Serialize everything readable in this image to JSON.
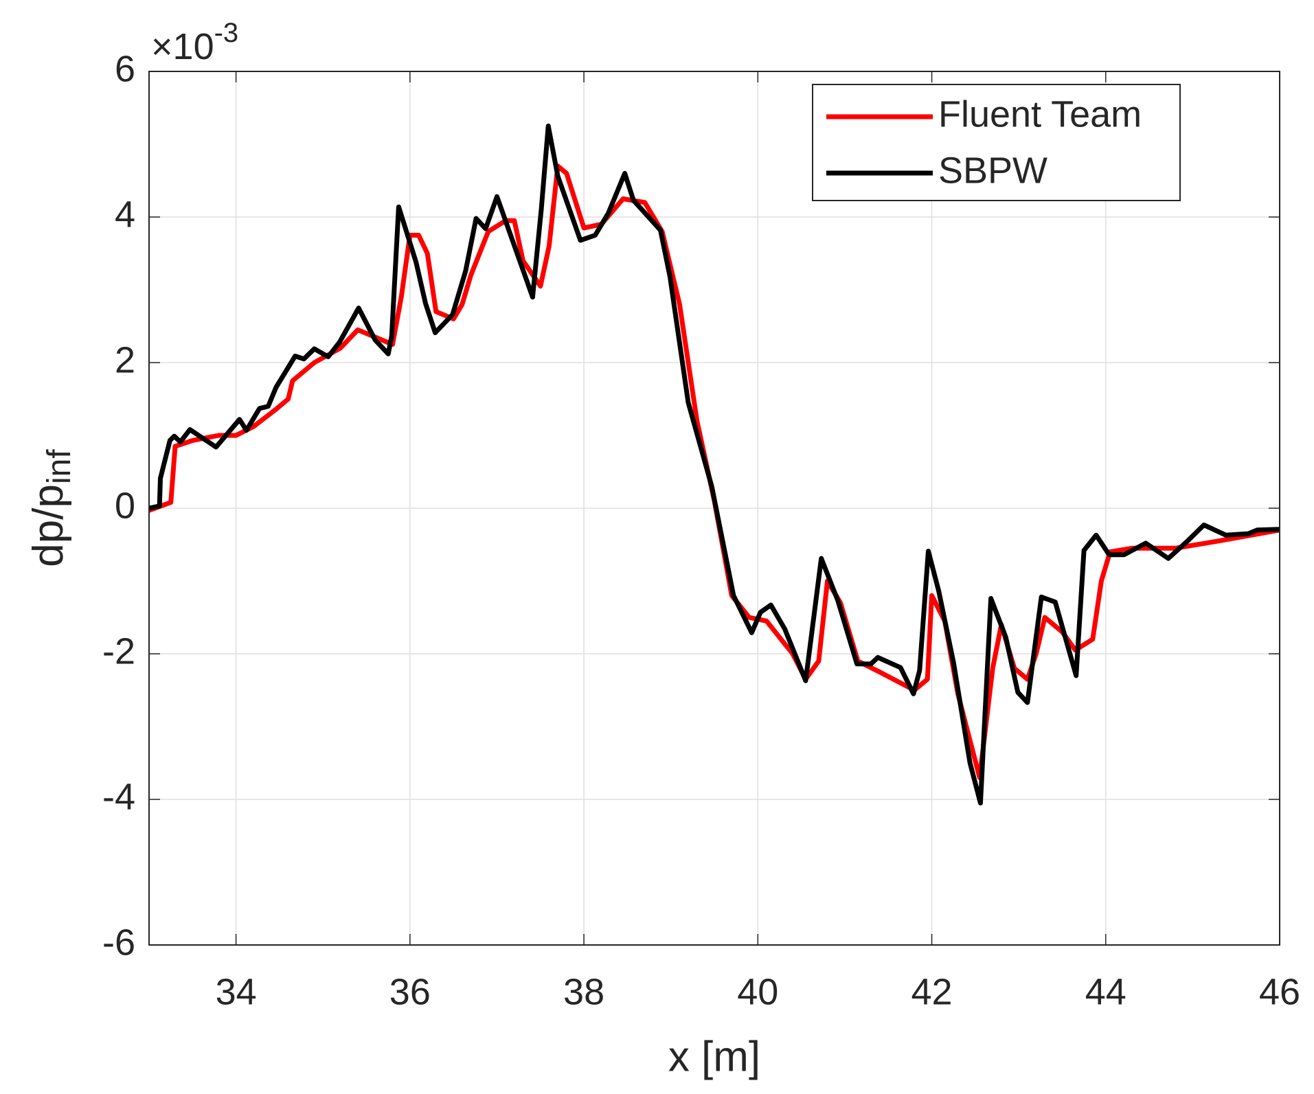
{
  "chart_data": {
    "type": "line",
    "xlabel": "x [m]",
    "ylabel": "dp/p",
    "ylabel_sub": "inf",
    "y_multiplier_base": "×10",
    "y_multiplier_exponent": "-3",
    "xlim": [
      33,
      46
    ],
    "xticks": [
      34,
      36,
      38,
      40,
      42,
      44,
      46
    ],
    "ylim": [
      -6,
      6
    ],
    "yticks": [
      -6,
      -4,
      -2,
      0,
      2,
      4,
      6
    ],
    "grid": true,
    "legend": "upper right",
    "series": [
      {
        "name": "Fluent Team",
        "color": "#ff0000",
        "x": [
          33,
          33.25,
          33.3,
          33.5,
          33.8,
          34.0,
          34.2,
          34.45,
          34.6,
          34.65,
          34.9,
          35.2,
          35.4,
          35.6,
          35.8,
          35.9,
          36.0,
          36.1,
          36.2,
          36.3,
          36.5,
          36.6,
          36.7,
          36.9,
          37.1,
          37.2,
          37.3,
          37.5,
          37.6,
          37.7,
          37.8,
          38.0,
          38.2,
          38.45,
          38.7,
          38.9,
          39.1,
          39.3,
          39.5,
          39.7,
          39.9,
          40.1,
          40.4,
          40.55,
          40.7,
          40.8,
          40.95,
          41.15,
          41.4,
          41.8,
          41.95,
          42.0,
          42.15,
          42.3,
          42.55,
          42.7,
          42.8,
          42.95,
          43.1,
          43.2,
          43.3,
          43.5,
          43.65,
          43.85,
          43.95,
          44.05,
          44.3,
          44.8,
          45.3,
          46
        ],
        "values": [
          -0.03,
          0.08,
          0.85,
          0.93,
          1.0,
          1.0,
          1.12,
          1.35,
          1.5,
          1.75,
          2.0,
          2.2,
          2.45,
          2.35,
          2.25,
          2.9,
          3.75,
          3.75,
          3.5,
          2.7,
          2.6,
          2.8,
          3.2,
          3.8,
          3.95,
          3.95,
          3.4,
          3.05,
          3.6,
          4.7,
          4.6,
          3.85,
          3.9,
          4.25,
          4.2,
          3.8,
          2.8,
          1.2,
          0.1,
          -1.2,
          -1.5,
          -1.55,
          -2.0,
          -2.35,
          -2.1,
          -1.0,
          -1.3,
          -2.1,
          -2.25,
          -2.5,
          -2.35,
          -1.2,
          -1.55,
          -2.55,
          -3.7,
          -2.2,
          -1.6,
          -2.2,
          -2.35,
          -2.0,
          -1.5,
          -1.7,
          -1.95,
          -1.8,
          -1.0,
          -0.6,
          -0.55,
          -0.55,
          -0.45,
          -0.3
        ]
      },
      {
        "name": "SBPW",
        "color": "#000000",
        "x": [
          33,
          33.12,
          33.13,
          33.24,
          33.29,
          33.36,
          33.47,
          33.77,
          34.04,
          34.12,
          34.27,
          34.37,
          34.46,
          34.68,
          34.78,
          34.9,
          35.06,
          35.19,
          35.41,
          35.6,
          35.75,
          35.79,
          35.87,
          36.07,
          36.18,
          36.29,
          36.49,
          36.64,
          36.76,
          36.87,
          37.0,
          37.41,
          37.51,
          37.59,
          37.7,
          37.96,
          38.13,
          38.28,
          38.47,
          38.57,
          38.88,
          38.99,
          39.2,
          39.47,
          39.72,
          39.93,
          40.03,
          40.15,
          40.31,
          40.55,
          40.73,
          40.92,
          41.14,
          41.3,
          41.38,
          41.64,
          41.79,
          41.86,
          41.96,
          42.08,
          42.25,
          42.44,
          42.56,
          42.68,
          42.85,
          42.99,
          43.1,
          43.26,
          43.42,
          43.66,
          43.75,
          43.89,
          44.04,
          44.21,
          44.46,
          44.72,
          44.95,
          45.13,
          45.38,
          45.64,
          45.74,
          46.0
        ],
        "values": [
          0,
          0.03,
          0.41,
          0.93,
          0.99,
          0.91,
          1.08,
          0.84,
          1.22,
          1.07,
          1.37,
          1.4,
          1.66,
          2.09,
          2.05,
          2.19,
          2.08,
          2.28,
          2.75,
          2.31,
          2.12,
          2.37,
          4.14,
          3.38,
          2.81,
          2.41,
          2.66,
          3.26,
          3.98,
          3.84,
          4.28,
          2.9,
          4.1,
          5.25,
          4.56,
          3.68,
          3.75,
          4.05,
          4.6,
          4.23,
          3.82,
          3.18,
          1.45,
          0.3,
          -1.2,
          -1.71,
          -1.43,
          -1.33,
          -1.66,
          -2.37,
          -0.69,
          -1.27,
          -2.14,
          -2.14,
          -2.05,
          -2.19,
          -2.55,
          -2.23,
          -0.59,
          -1.14,
          -2.12,
          -3.5,
          -4.05,
          -1.24,
          -1.77,
          -2.53,
          -2.67,
          -1.22,
          -1.29,
          -2.3,
          -0.58,
          -0.37,
          -0.64,
          -0.64,
          -0.48,
          -0.69,
          -0.44,
          -0.23,
          -0.37,
          -0.35,
          -0.3,
          -0.29
        ]
      }
    ]
  }
}
